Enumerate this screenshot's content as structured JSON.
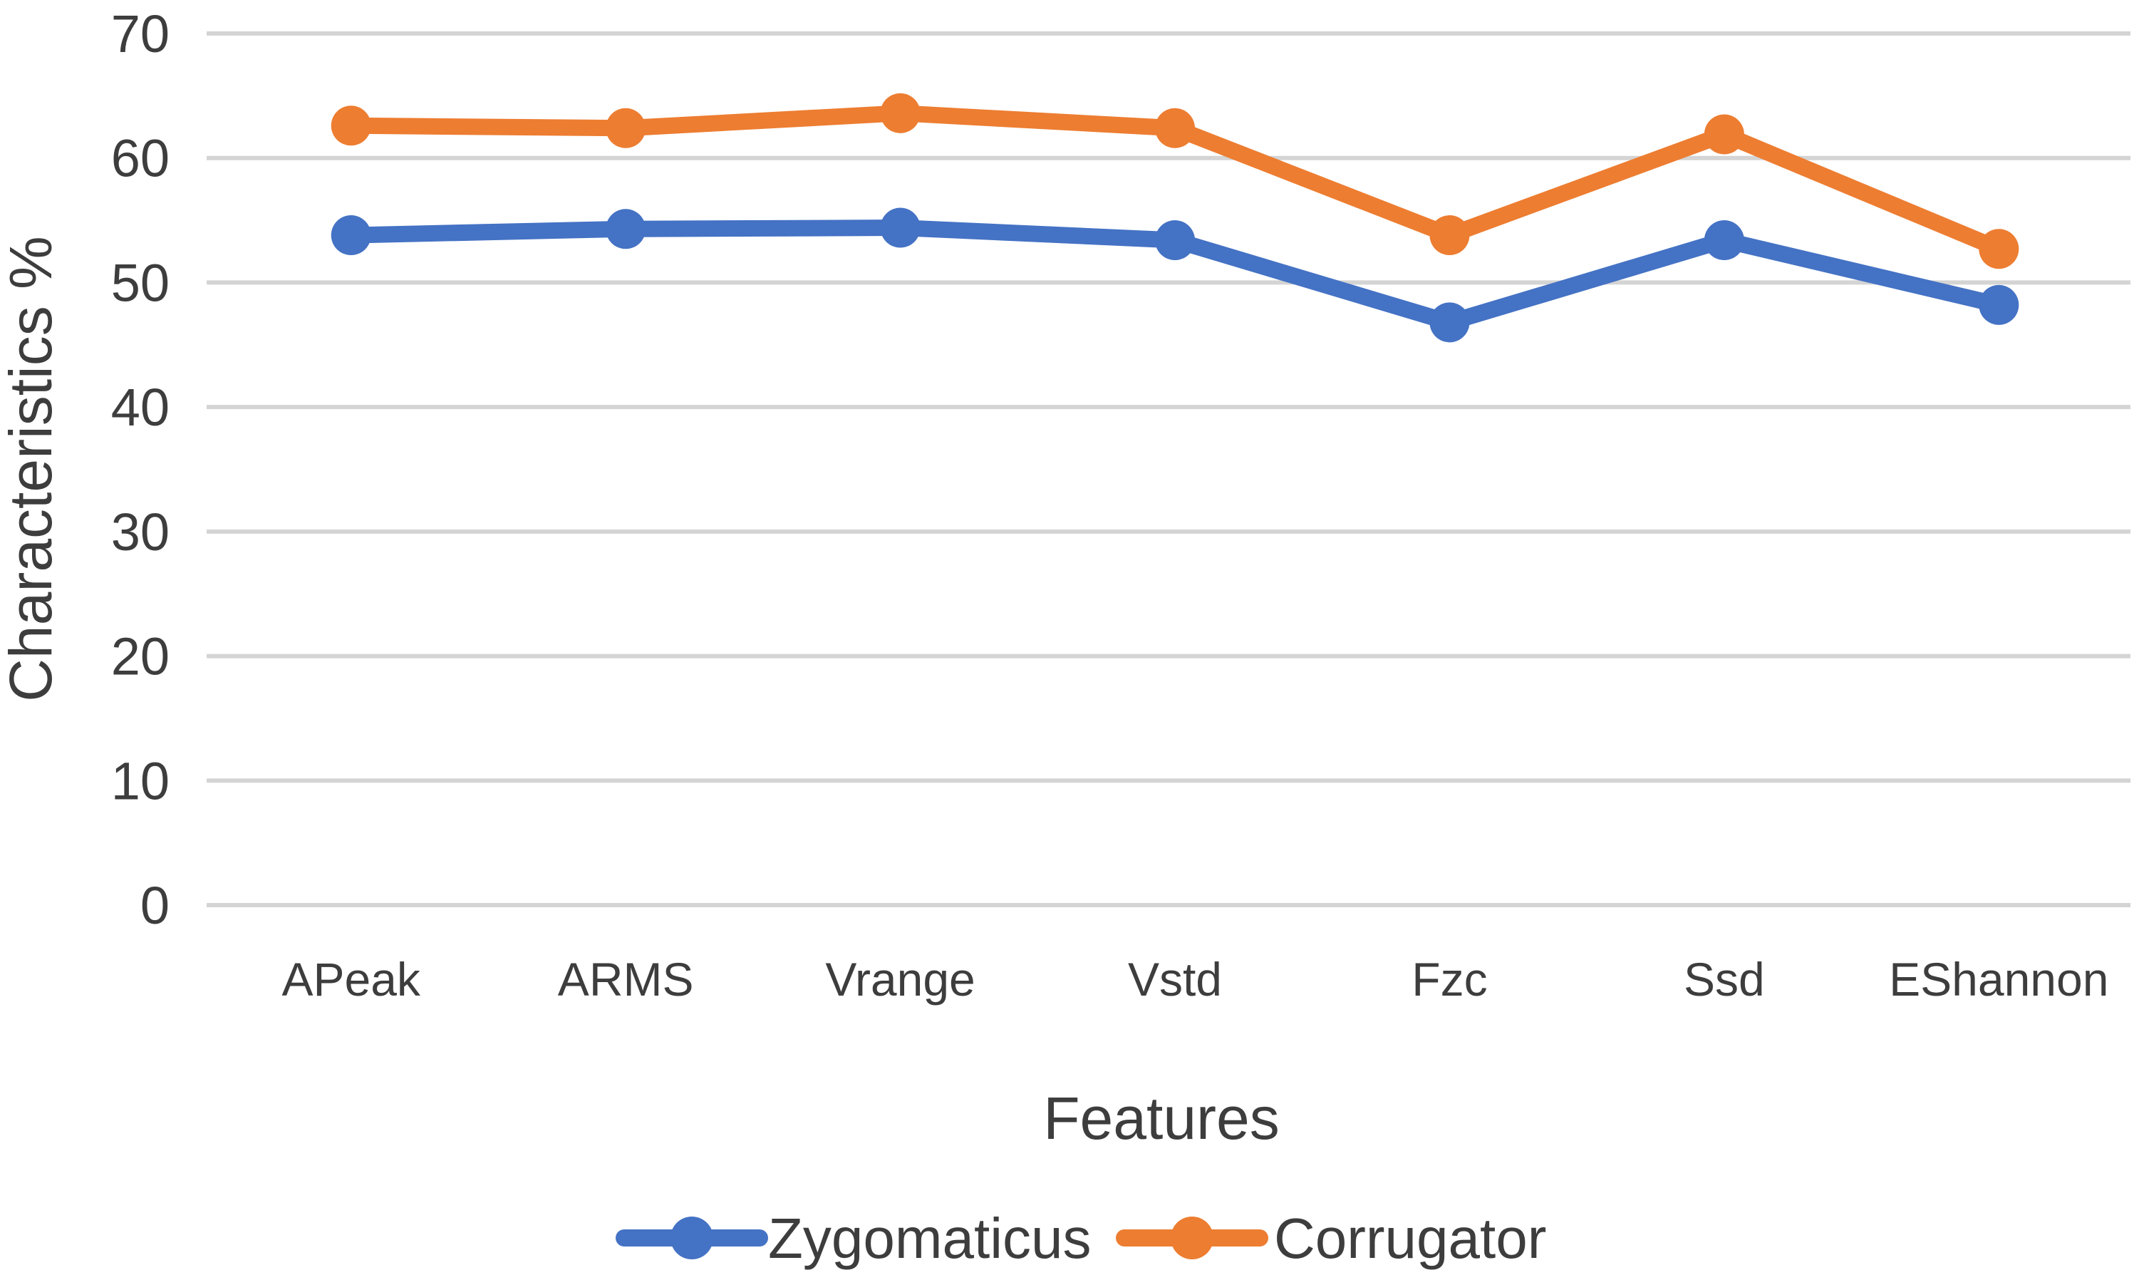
{
  "chart_data": {
    "type": "line",
    "categories": [
      "APeak",
      "ARMS",
      "Vrange",
      "Vstd",
      "Fzc",
      "Ssd",
      "EShannon"
    ],
    "series": [
      {
        "name": "Zygomaticus",
        "color": "#4472C4",
        "marker": "circle",
        "values": [
          53.8,
          54.3,
          54.4,
          53.4,
          46.8,
          53.4,
          48.2
        ]
      },
      {
        "name": "Corrugator",
        "color": "#ED7D31",
        "marker": "circle",
        "values": [
          62.6,
          62.4,
          63.6,
          62.4,
          53.8,
          61.9,
          52.7
        ]
      }
    ],
    "xlabel": "Features",
    "ylabel": "Characteristics %",
    "ylim": [
      0,
      70
    ],
    "yticks": [
      0,
      10,
      20,
      30,
      40,
      50,
      60,
      70
    ],
    "ytick_step": 10,
    "grid": true,
    "gridline_color": "#d4d4d4",
    "text_color": "#3d3d3d",
    "legend_position": "bottom"
  }
}
